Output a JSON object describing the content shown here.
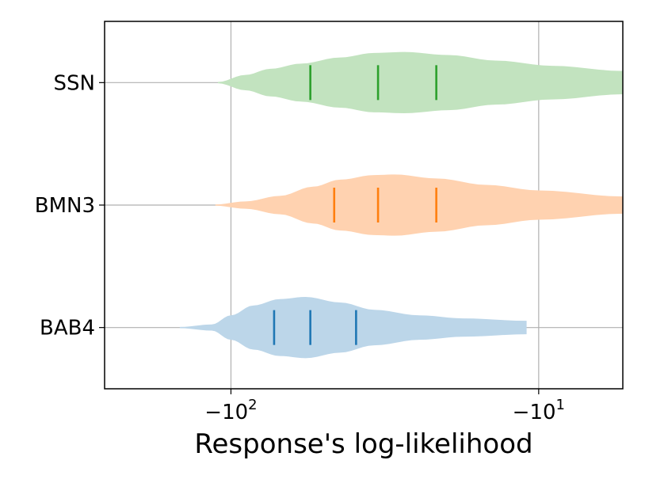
{
  "chart_data": {
    "type": "violin",
    "orientation": "horizontal",
    "xlabel": "Response's log-likelihood",
    "xscale": "symlog",
    "xlim": [
      -250,
      -5
    ],
    "x_ticks": [
      {
        "value": -100,
        "label": "−10",
        "sup": "2"
      },
      {
        "value": -10,
        "label": "−10",
        "sup": "1"
      }
    ],
    "grid": true,
    "categories": [
      "SSN",
      "BMN3",
      "BAB4"
    ],
    "series": [
      {
        "name": "SSN",
        "color": "#2ca02c",
        "fill": "#c2e3bf",
        "range": [
          -110,
          -5
        ],
        "quartiles": [
          -56,
          -34,
          -22
        ],
        "density": [
          [
            -110,
            0.02
          ],
          [
            -90,
            0.25
          ],
          [
            -75,
            0.45
          ],
          [
            -60,
            0.62
          ],
          [
            -45,
            0.82
          ],
          [
            -35,
            0.97
          ],
          [
            -28,
            1.0
          ],
          [
            -20,
            0.9
          ],
          [
            -14,
            0.72
          ],
          [
            -9,
            0.55
          ],
          [
            -5,
            0.38
          ]
        ]
      },
      {
        "name": "BMN3",
        "color": "#ff7f0e",
        "fill": "#ffd2b0",
        "range": [
          -112,
          -5
        ],
        "quartiles": [
          -47,
          -34,
          -22
        ],
        "density": [
          [
            -112,
            0.02
          ],
          [
            -90,
            0.12
          ],
          [
            -70,
            0.3
          ],
          [
            -55,
            0.6
          ],
          [
            -45,
            0.83
          ],
          [
            -35,
            0.98
          ],
          [
            -30,
            1.0
          ],
          [
            -22,
            0.87
          ],
          [
            -15,
            0.66
          ],
          [
            -10,
            0.48
          ],
          [
            -5,
            0.28
          ]
        ]
      },
      {
        "name": "BAB4",
        "color": "#1f77b4",
        "fill": "#bcd6e9",
        "range": [
          -145,
          -11
        ],
        "quartiles": [
          -73,
          -56,
          -40
        ],
        "density": [
          [
            -145,
            0.02
          ],
          [
            -115,
            0.1
          ],
          [
            -100,
            0.4
          ],
          [
            -85,
            0.72
          ],
          [
            -70,
            0.93
          ],
          [
            -58,
            1.0
          ],
          [
            -45,
            0.82
          ],
          [
            -35,
            0.58
          ],
          [
            -25,
            0.4
          ],
          [
            -18,
            0.3
          ],
          [
            -11,
            0.22
          ]
        ]
      }
    ]
  }
}
